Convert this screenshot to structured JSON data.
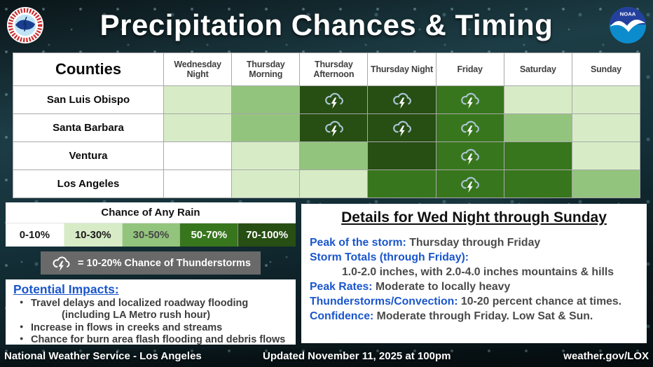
{
  "header": {
    "title": "Precipitation Chances & Timing",
    "noaa_label": "NOAA"
  },
  "chart_data": {
    "type": "heatmap",
    "title": "Precipitation Chances & Timing",
    "x": [
      "Wednesday Night",
      "Thursday Morning",
      "Thursday Afternoon",
      "Thursday Night",
      "Friday",
      "Saturday",
      "Sunday"
    ],
    "y": [
      "San Luis Obispo",
      "Santa Barbara",
      "Ventura",
      "Los Angeles"
    ],
    "values": [
      [
        "10-30%",
        "30-50%",
        "70-100%",
        "70-100%",
        "50-70%",
        "10-30%",
        "10-30%"
      ],
      [
        "10-30%",
        "30-50%",
        "70-100%",
        "70-100%",
        "50-70%",
        "30-50%",
        "10-30%"
      ],
      [
        "0-10%",
        "10-30%",
        "30-50%",
        "70-100%",
        "50-70%",
        "50-70%",
        "10-30%"
      ],
      [
        "0-10%",
        "10-30%",
        "10-30%",
        "50-70%",
        "50-70%",
        "50-70%",
        "30-50%"
      ]
    ],
    "thunder": [
      [
        false,
        false,
        true,
        true,
        true,
        false,
        false
      ],
      [
        false,
        false,
        true,
        true,
        true,
        false,
        false
      ],
      [
        false,
        false,
        false,
        false,
        true,
        false,
        false
      ],
      [
        false,
        false,
        false,
        false,
        true,
        false,
        false
      ]
    ],
    "legend_position": "bottom-left",
    "annotation": "= 10-20% Chance of Thunderstorms"
  },
  "table": {
    "corner_label": "Counties"
  },
  "legend": {
    "title": "Chance of Any Rain",
    "bins": [
      {
        "label": "0-10%",
        "color": "#ffffff",
        "text_color": "#1a1a1a"
      },
      {
        "label": "10-30%",
        "color": "#d7ecc6",
        "text_color": "#1a1a1a"
      },
      {
        "label": "30-50%",
        "color": "#93c47d",
        "text_color": "#474747"
      },
      {
        "label": "50-70%",
        "color": "#38761d",
        "text_color": "#ffffff"
      },
      {
        "label": "70-100%",
        "color": "#274e13",
        "text_color": "#ffffff"
      }
    ],
    "thunder_note": "= 10-20% Chance of Thunderstorms"
  },
  "impacts": {
    "title": "Potential Impacts:",
    "bullets": [
      {
        "text": "Travel delays and localized roadway flooding",
        "sub": "(including LA Metro rush hour)"
      },
      {
        "text": "Increase in flows in creeks and streams"
      },
      {
        "text": "Chance for burn area flash flooding and debris flows"
      }
    ]
  },
  "details": {
    "title": "Details for Wed Night through Sunday",
    "lines": [
      {
        "label": "Peak of the storm:",
        "value": "Thursday through Friday"
      },
      {
        "label": "Storm Totals (through Friday):",
        "value": ""
      },
      {
        "label": "",
        "value": "1.0-2.0 inches, with 2.0-4.0 inches mountains & hills",
        "indent": true
      },
      {
        "label": "Peak Rates:",
        "value": "Moderate to locally heavy"
      },
      {
        "label": "Thunderstorms/Convection:",
        "value": "10-20 percent chance at times."
      },
      {
        "label": "Confidence:",
        "value": "Moderate through Friday. Low Sat & Sun."
      }
    ]
  },
  "footer": {
    "left": "National Weather Service - Los Angeles",
    "center": "Updated November 11, 2025 at 100pm",
    "right": "weather.gov/LOX"
  },
  "theme": {
    "accent_blue": "#1a56cc",
    "note_gray": "#696969",
    "cell_border": "#a8a8a8"
  }
}
